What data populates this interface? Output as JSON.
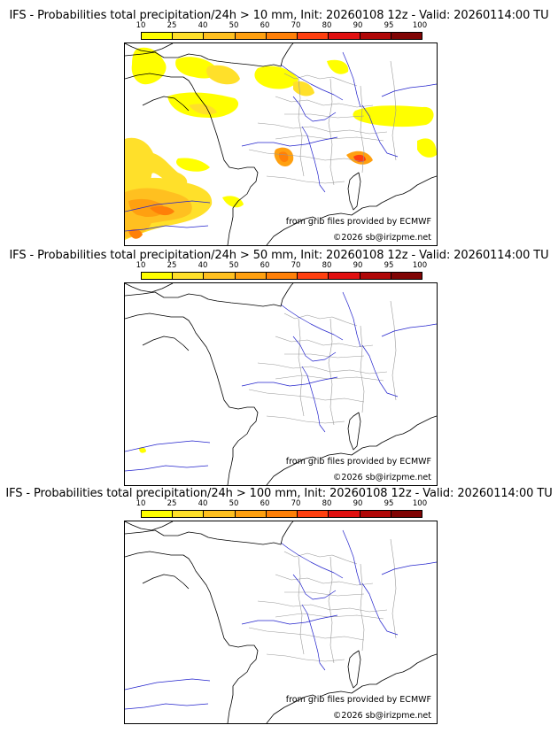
{
  "scale": {
    "levels": [
      "10",
      "25",
      "40",
      "50",
      "60",
      "70",
      "80",
      "90",
      "95",
      "100"
    ],
    "colors": [
      "#ffff00",
      "#ffe02a",
      "#ffc020",
      "#ffa010",
      "#ff8008",
      "#ff4010",
      "#e01010",
      "#b00808",
      "#800404",
      "#500000"
    ]
  },
  "panels": [
    {
      "title": "IFS - Probabilities total precipitation/24h > 10 mm, Init: 20260108 12z - Valid: 20260114:00 TU",
      "source": "from grib files provided by ECMWF",
      "copyright": "©2026 sb@irizpme.net"
    },
    {
      "title": "IFS - Probabilities total precipitation/24h > 50 mm, Init: 20260108 12z - Valid: 20260114:00 TU",
      "source": "from grib files provided by ECMWF",
      "copyright": "©2026 sb@irizpme.net"
    },
    {
      "title": "IFS - Probabilities total precipitation/24h > 100 mm, Init: 20260108 12z - Valid: 20260114:00 TU",
      "source": "from grib files provided by ECMWF",
      "copyright": "©2026 sb@irizpme.net"
    }
  ],
  "map": {
    "coast_color": "#000000",
    "river_color": "#2222cc",
    "border_color": "#999999"
  }
}
